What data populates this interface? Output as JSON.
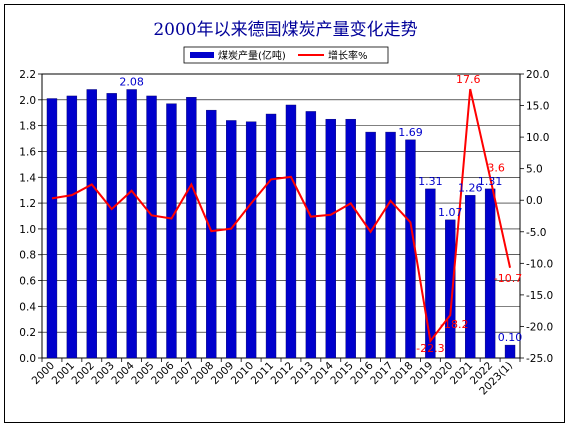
{
  "chart_data": {
    "type": "bar",
    "title": "2000年以来德国煤炭产量变化走势",
    "categories": [
      "2000",
      "2001",
      "2002",
      "2003",
      "2004",
      "2005",
      "2006",
      "2007",
      "2008",
      "2009",
      "2010",
      "2011",
      "2012",
      "2013",
      "2014",
      "2015",
      "2016",
      "2017",
      "2018",
      "2019",
      "2020",
      "2021",
      "2022",
      "2023(1)"
    ],
    "series": [
      {
        "name": "煤炭产量(亿吨)",
        "type": "bar",
        "axis": "left",
        "color": "#0000CC",
        "values": [
          2.01,
          2.03,
          2.08,
          2.05,
          2.08,
          2.03,
          1.97,
          2.02,
          1.92,
          1.84,
          1.83,
          1.89,
          1.96,
          1.91,
          1.85,
          1.85,
          1.75,
          1.75,
          1.69,
          1.31,
          1.07,
          1.26,
          1.31,
          0.1
        ]
      },
      {
        "name": "增长率%",
        "type": "line",
        "axis": "right",
        "color": "#FF0000",
        "values": [
          0.3,
          0.8,
          2.5,
          -1.4,
          1.5,
          -2.4,
          -2.9,
          2.5,
          -4.9,
          -4.5,
          -0.5,
          3.3,
          3.7,
          -2.6,
          -2.3,
          -0.5,
          -5.0,
          -0.1,
          -3.5,
          -22.3,
          -18.2,
          17.6,
          3.6,
          -10.7
        ]
      }
    ],
    "data_labels": {
      "bars": [
        {
          "index": 4,
          "text": "2.08"
        },
        {
          "index": 18,
          "text": "1.69"
        },
        {
          "index": 19,
          "text": "1.31"
        },
        {
          "index": 20,
          "text": "1.07"
        },
        {
          "index": 21,
          "text": "1.26"
        },
        {
          "index": 22,
          "text": "1.31"
        },
        {
          "index": 23,
          "text": "0.10"
        }
      ],
      "line": [
        {
          "index": 19,
          "text": "-22.3"
        },
        {
          "index": 20,
          "text": "-18.2"
        },
        {
          "index": 21,
          "text": "17.6"
        },
        {
          "index": 22,
          "text": "3.6"
        },
        {
          "index": 23,
          "text": "-10.7"
        }
      ]
    },
    "y_left": {
      "min": 0,
      "max": 2.2,
      "ticks": [
        "0.0",
        "0.2",
        "0.4",
        "0.6",
        "0.8",
        "1.0",
        "1.2",
        "1.4",
        "1.6",
        "1.8",
        "2.0",
        "2.2"
      ]
    },
    "y_right": {
      "min": -25,
      "max": 20,
      "ticks": [
        "-25.0",
        "-20.0",
        "-15.0",
        "-10.0",
        "-5.0",
        "0.0",
        "5.0",
        "10.0",
        "15.0",
        "20.0"
      ]
    },
    "grid": true,
    "legend_position": "top"
  }
}
